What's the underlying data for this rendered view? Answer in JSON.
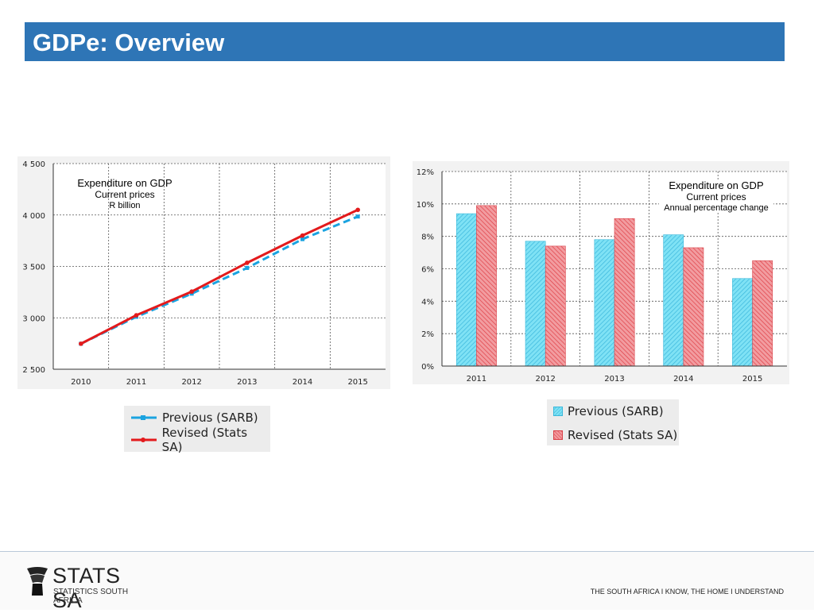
{
  "slide": {
    "title": "GDPe: Overview",
    "footer": {
      "logo_text": "STATS SA",
      "logo_subtext": "STATISTICS SOUTH AFRICA",
      "tagline": "THE SOUTH AFRICA I KNOW, THE HOME I UNDERSTAND"
    },
    "colors": {
      "title_bar": "#2e75b6",
      "previous": "#1aa3e0",
      "revised": "#e31a1c",
      "bar_previous": "#5cd6f0",
      "bar_revised": "#e8555c"
    }
  },
  "chart_data": [
    {
      "type": "line",
      "title": "Expenditure on GDP",
      "subtitle": "Current prices",
      "unit_note": "R billion",
      "x": [
        "2010",
        "2011",
        "2012",
        "2013",
        "2014",
        "2015"
      ],
      "ylim": [
        2500,
        4500
      ],
      "yticks": [
        2500,
        3000,
        3500,
        4000,
        4500
      ],
      "ytick_labels": [
        "2 500",
        "3 000",
        "3 500",
        "4 000",
        "4 500"
      ],
      "grid": true,
      "legend_position": "below",
      "series": [
        {
          "name": "Previous (SARB)",
          "values": [
            2748,
            3010,
            3235,
            3485,
            3765,
            3985
          ]
        },
        {
          "name": "Revised (Stats SA)",
          "values": [
            2748,
            3025,
            3255,
            3535,
            3800,
            4050
          ]
        }
      ]
    },
    {
      "type": "bar",
      "title": "Expenditure on GDP",
      "subtitle": "Current prices",
      "unit_note": "Annual percentage change",
      "categories": [
        "2011",
        "2012",
        "2013",
        "2014",
        "2015"
      ],
      "ylim": [
        0,
        12
      ],
      "yticks": [
        0,
        2,
        4,
        6,
        8,
        10,
        12
      ],
      "ytick_labels": [
        "0%",
        "2%",
        "4%",
        "6%",
        "8%",
        "10%",
        "12%"
      ],
      "grid": true,
      "legend_position": "below",
      "series": [
        {
          "name": "Previous (SARB)",
          "values": [
            9.4,
            7.7,
            7.8,
            8.1,
            5.4
          ]
        },
        {
          "name": "Revised (Stats SA)",
          "values": [
            9.9,
            7.4,
            9.1,
            7.3,
            6.5
          ]
        }
      ]
    }
  ]
}
